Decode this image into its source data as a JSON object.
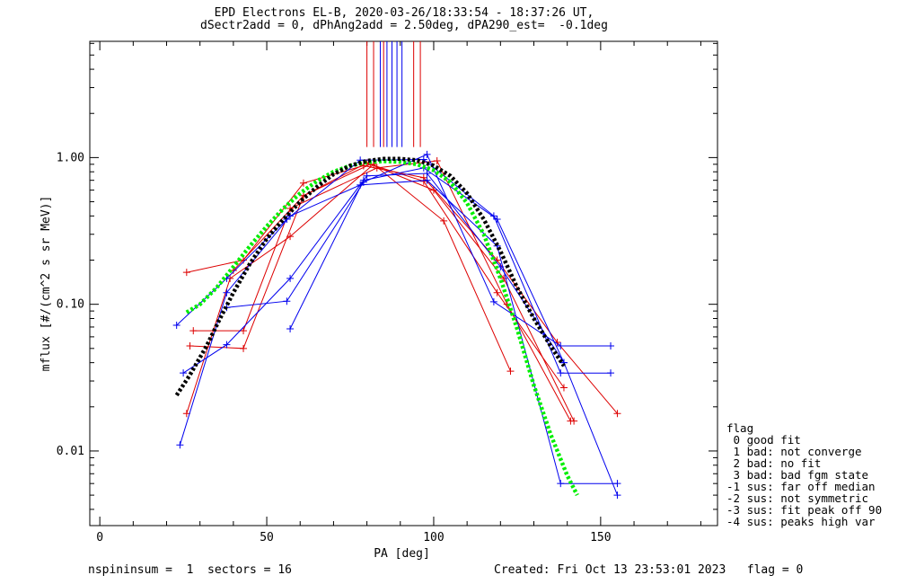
{
  "title": {
    "line1": "EPD Electrons EL-B, 2020-03-26/18:33:54 - 18:37:26 UT,",
    "line2": "dSectr2add = 0, dPhAng2add = 2.50deg, dPA290_est=  -0.1deg"
  },
  "footer": {
    "left": "nspininsum =  1  sectors = 16",
    "right": "Created: Fri Oct 13 23:53:01 2023   flag = 0"
  },
  "legend": {
    "title": "flag",
    "items": [
      " 0 good fit",
      " 1 bad: not converge",
      " 2 bad: no fit",
      " 3 bad: bad fgm state",
      "-1 sus: far off median",
      "-2 sus: not symmetric",
      "-3 sus: fit peak off 90",
      "-4 sus: peaks high var"
    ]
  },
  "colors": {
    "red": "#dd0000",
    "blue": "#0000ee",
    "green": "#00ee00",
    "black": "#000000",
    "axis": "#000000"
  },
  "chart_data": {
    "type": "line",
    "xlabel": "PA [deg]",
    "ylabel": "mflux [#/(cm^2 s sr MeV)]",
    "xlim": [
      -3,
      185
    ],
    "ylim": [
      0.0031,
      6.2
    ],
    "ylog": true,
    "grid": false,
    "xticks": [
      0,
      50,
      100,
      150
    ],
    "xtick_labels": [
      "0",
      "50",
      "100",
      "150"
    ],
    "yticks": [
      0.01,
      0.1,
      1.0
    ],
    "ytick_labels": [
      "0.01",
      "0.10",
      "1.00"
    ],
    "series": [
      {
        "color": "red",
        "points": [
          [
            26,
            0.165
          ],
          [
            43,
            0.2
          ],
          [
            61,
            0.67
          ],
          [
            79,
            0.88
          ],
          [
            97,
            0.73
          ],
          [
            119,
            0.2
          ],
          [
            137,
            0.055
          ],
          [
            155,
            0.018
          ]
        ]
      },
      {
        "color": "red",
        "points": [
          [
            27,
            0.052
          ],
          [
            43,
            0.05
          ],
          [
            61,
            0.55
          ],
          [
            81,
            0.9
          ],
          [
            97,
            0.69
          ],
          [
            119,
            0.12
          ],
          [
            139,
            0.027
          ]
        ]
      },
      {
        "color": "red",
        "points": [
          [
            28,
            0.066
          ],
          [
            43,
            0.066
          ],
          [
            57,
            0.45
          ],
          [
            83,
            0.85
          ],
          [
            101,
            0.95
          ],
          [
            122,
            0.1
          ],
          [
            141,
            0.016
          ]
        ]
      },
      {
        "color": "red",
        "points": [
          [
            26,
            0.018
          ],
          [
            39,
            0.15
          ],
          [
            57,
            0.29
          ],
          [
            82,
            0.9
          ],
          [
            103,
            0.37
          ],
          [
            123,
            0.035
          ]
        ]
      },
      {
        "color": "red",
        "points": [
          [
            40,
            0.17
          ],
          [
            61,
            0.55
          ],
          [
            80,
            0.92
          ],
          [
            100,
            0.6
          ],
          [
            121,
            0.15
          ],
          [
            142,
            0.016
          ]
        ]
      },
      {
        "color": "blue",
        "points": [
          [
            23,
            0.072
          ],
          [
            38,
            0.15
          ],
          [
            56,
            0.38
          ],
          [
            78,
            0.96
          ],
          [
            97,
            0.97
          ],
          [
            118,
            0.4
          ],
          [
            138,
            0.034
          ],
          [
            153,
            0.034
          ]
        ]
      },
      {
        "color": "blue",
        "points": [
          [
            24,
            0.011
          ],
          [
            38,
            0.12
          ],
          [
            57,
            0.4
          ],
          [
            78,
            0.65
          ],
          [
            98,
            0.7
          ],
          [
            119,
            0.25
          ],
          [
            138,
            0.006
          ],
          [
            155,
            0.006
          ]
        ]
      },
      {
        "color": "blue",
        "points": [
          [
            25,
            0.034
          ],
          [
            38,
            0.053
          ],
          [
            57,
            0.15
          ],
          [
            80,
            0.75
          ],
          [
            98,
            0.78
          ],
          [
            120,
            0.18
          ],
          [
            139,
            0.04
          ],
          [
            155,
            0.005
          ]
        ]
      },
      {
        "color": "blue",
        "points": [
          [
            38,
            0.095
          ],
          [
            56,
            0.105
          ],
          [
            79,
            0.68
          ],
          [
            98,
            1.05
          ],
          [
            118,
            0.104
          ],
          [
            138,
            0.052
          ],
          [
            153,
            0.052
          ]
        ]
      },
      {
        "color": "blue",
        "points": [
          [
            57,
            0.068
          ],
          [
            79,
            0.7
          ],
          [
            97,
            0.85
          ],
          [
            119,
            0.38
          ],
          [
            139,
            0.04
          ]
        ]
      }
    ],
    "fits": [
      {
        "color": "green",
        "style": "dotted",
        "points": [
          [
            26,
            0.088
          ],
          [
            30,
            0.1
          ],
          [
            35,
            0.13
          ],
          [
            40,
            0.18
          ],
          [
            45,
            0.25
          ],
          [
            50,
            0.34
          ],
          [
            55,
            0.45
          ],
          [
            60,
            0.57
          ],
          [
            65,
            0.69
          ],
          [
            70,
            0.8
          ],
          [
            75,
            0.88
          ],
          [
            80,
            0.93
          ],
          [
            85,
            0.945
          ],
          [
            90,
            0.935
          ],
          [
            95,
            0.9
          ],
          [
            100,
            0.82
          ],
          [
            105,
            0.68
          ],
          [
            110,
            0.49
          ],
          [
            115,
            0.3
          ],
          [
            120,
            0.15
          ],
          [
            125,
            0.068
          ],
          [
            130,
            0.028
          ],
          [
            135,
            0.013
          ],
          [
            140,
            0.0068
          ],
          [
            143,
            0.005
          ]
        ]
      },
      {
        "color": "black",
        "style": "dotted",
        "points": [
          [
            23,
            0.024
          ],
          [
            27,
            0.033
          ],
          [
            32,
            0.052
          ],
          [
            36,
            0.08
          ],
          [
            40,
            0.12
          ],
          [
            45,
            0.19
          ],
          [
            50,
            0.28
          ],
          [
            55,
            0.38
          ],
          [
            60,
            0.5
          ],
          [
            65,
            0.63
          ],
          [
            70,
            0.77
          ],
          [
            75,
            0.88
          ],
          [
            80,
            0.95
          ],
          [
            85,
            0.98
          ],
          [
            90,
            0.98
          ],
          [
            95,
            0.96
          ],
          [
            100,
            0.88
          ],
          [
            105,
            0.75
          ],
          [
            110,
            0.57
          ],
          [
            115,
            0.38
          ],
          [
            120,
            0.23
          ],
          [
            125,
            0.13
          ],
          [
            130,
            0.08
          ],
          [
            135,
            0.052
          ],
          [
            139,
            0.038
          ]
        ]
      }
    ],
    "vlines": [
      {
        "color": "red",
        "x": 80
      },
      {
        "color": "red",
        "x": 82
      },
      {
        "color": "red",
        "x": 85
      },
      {
        "color": "red",
        "x": 94
      },
      {
        "color": "red",
        "x": 96
      },
      {
        "color": "blue",
        "x": 84
      },
      {
        "color": "blue",
        "x": 86
      },
      {
        "color": "blue",
        "x": 87.5
      },
      {
        "color": "blue",
        "x": 89
      },
      {
        "color": "blue",
        "x": 90.5
      }
    ]
  }
}
